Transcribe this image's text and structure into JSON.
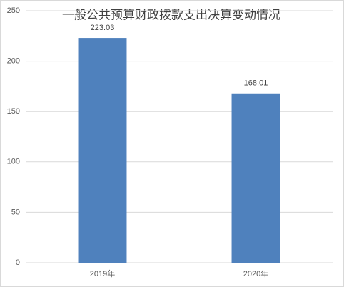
{
  "chart_data": {
    "type": "bar",
    "title": "一般公共预算财政拨款支出决算变动情况",
    "categories": [
      "2019年",
      "2020年"
    ],
    "values": [
      223.03,
      168.01
    ],
    "color": "#4f81bd",
    "ylim": [
      0,
      250
    ],
    "yticks": [
      0,
      50,
      100,
      150,
      200,
      250
    ],
    "grid": true
  }
}
